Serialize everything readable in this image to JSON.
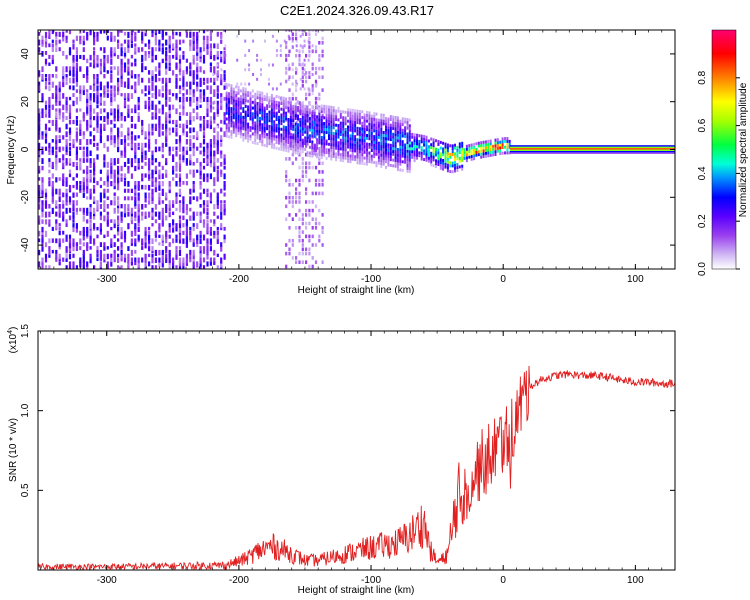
{
  "title": "C2E1.2024.326.09.43.R17",
  "chart_data": [
    {
      "type": "heatmap",
      "title": "C2E1.2024.326.09.43.R17",
      "xlabel": "Height of straight line (km)",
      "ylabel": "Frequency (Hz)",
      "xlim": [
        -352,
        130
      ],
      "ylim": [
        -50,
        50
      ],
      "xticks": [
        -300,
        -200,
        -100,
        0,
        100
      ],
      "yticks": [
        -40,
        -20,
        0,
        20,
        40
      ],
      "colorbar": {
        "label": "Normalized spectral amplitude",
        "range": [
          0,
          1
        ],
        "ticks": [
          0.0,
          0.2,
          0.4,
          0.6,
          0.8
        ],
        "tick_labels": [
          "0.0",
          "0.2",
          "0.4",
          "0.6",
          "0.8"
        ],
        "colormap": [
          "#ffffff",
          "#c8a8f0",
          "#8b2be2",
          "#5a00ff",
          "#0000ff",
          "#00b4ff",
          "#00ffd0",
          "#00ff40",
          "#b4ff00",
          "#ffff00",
          "#ff8000",
          "#ff0000",
          "#ff0080"
        ]
      },
      "features": [
        {
          "name": "noise",
          "x_range": [
            -352,
            -210
          ],
          "freq_range": [
            -50,
            50
          ],
          "amplitude": 0.25
        },
        {
          "name": "noise band",
          "x_range": [
            -165,
            -135
          ],
          "freq_range": [
            -50,
            50
          ],
          "amplitude": 0.12
        },
        {
          "name": "signal trace",
          "x": [
            -210,
            -150,
            -100,
            -60,
            -40,
            -20,
            0,
            5
          ],
          "freq": [
            16,
            8,
            4,
            0,
            -4,
            -1,
            1,
            1
          ],
          "amplitude": [
            0.3,
            0.35,
            0.35,
            0.45,
            0.75,
            0.85,
            0.85,
            0.6
          ]
        },
        {
          "name": "tone",
          "x_range": [
            5,
            130
          ],
          "freq": 0,
          "amplitude": 0.85
        }
      ]
    },
    {
      "type": "line",
      "xlabel": "Height of straight line (km)",
      "ylabel": "SNR (10 * v/v)",
      "y_multiplier_label": "(x10",
      "y_multiplier_exp": "4",
      "xlim": [
        -352,
        130
      ],
      "ylim": [
        0,
        1.5
      ],
      "xticks": [
        -300,
        -200,
        -100,
        0,
        100
      ],
      "yticks": [
        0.5,
        1.0,
        1.5
      ],
      "ytick_labels": [
        "0.5",
        "1.0",
        "1.5"
      ],
      "series": [
        {
          "color": "#e02020",
          "x": [
            -352,
            -300,
            -250,
            -210,
            -195,
            -185,
            -175,
            -165,
            -150,
            -140,
            -120,
            -100,
            -80,
            -70,
            -60,
            -55,
            -50,
            -45,
            -40,
            -35,
            -30,
            -25,
            -20,
            -15,
            -10,
            -5,
            0,
            5,
            10,
            15,
            20,
            30,
            40,
            50,
            60,
            70,
            80,
            90,
            100,
            110,
            120,
            130
          ],
          "y": [
            0.02,
            0.02,
            0.025,
            0.03,
            0.07,
            0.12,
            0.15,
            0.12,
            0.06,
            0.06,
            0.1,
            0.14,
            0.17,
            0.22,
            0.3,
            0.12,
            0.05,
            0.07,
            0.14,
            0.45,
            0.5,
            0.55,
            0.62,
            0.68,
            0.72,
            0.78,
            0.82,
            0.85,
            0.95,
            1.08,
            1.15,
            1.2,
            1.22,
            1.23,
            1.22,
            1.22,
            1.21,
            1.19,
            1.18,
            1.18,
            1.17,
            1.17
          ]
        }
      ]
    }
  ],
  "axis_labels": {
    "top_x": "Height of straight line (km)",
    "top_y": "Frequency (Hz)",
    "bottom_x": "Height of straight line (km)",
    "bottom_y": "SNR (10 * v/v)",
    "colorbar": "Normalized spectral amplitude"
  }
}
